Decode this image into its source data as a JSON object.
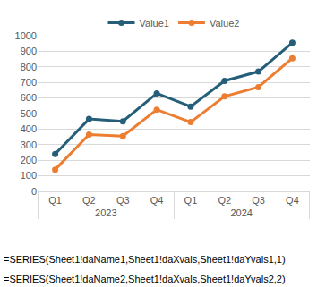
{
  "chart_data": {
    "type": "line",
    "categories": [
      "Q1",
      "Q2",
      "Q3",
      "Q4",
      "Q1",
      "Q2",
      "Q3",
      "Q4"
    ],
    "groups": [
      "2023",
      "2023",
      "2023",
      "2023",
      "2024",
      "2024",
      "2024",
      "2024"
    ],
    "series": [
      {
        "name": "Value1",
        "color": "#255e79",
        "marker": "circle",
        "values": [
          240,
          465,
          450,
          630,
          545,
          710,
          770,
          955
        ]
      },
      {
        "name": "Value2",
        "color": "#ed7d31",
        "marker": "circle",
        "values": [
          140,
          365,
          355,
          525,
          445,
          610,
          670,
          855
        ]
      }
    ],
    "ylim": [
      0,
      1000
    ],
    "yticks": [
      0,
      100,
      200,
      300,
      400,
      500,
      600,
      700,
      800,
      900,
      1000
    ],
    "grid": true,
    "legend": "top"
  },
  "formulas": [
    "=SERIES(Sheet1!daName1,Sheet1!daXvals,Sheet1!daYvals1,1)",
    "=SERIES(Sheet1!daName2,Sheet1!daXvals,Sheet1!daYvals2,2)"
  ]
}
